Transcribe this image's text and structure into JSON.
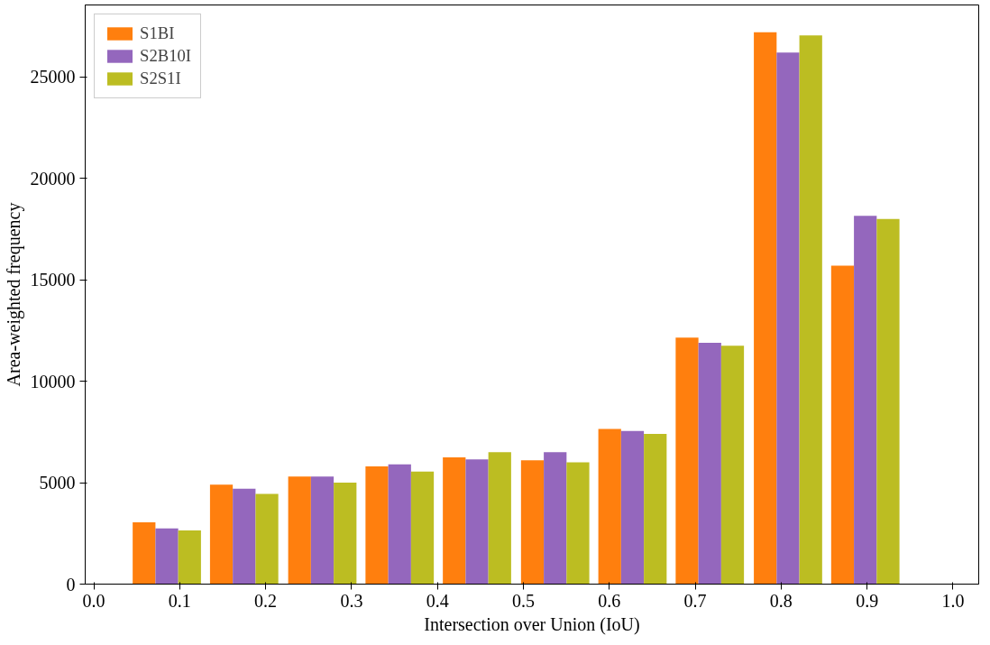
{
  "chart_data": {
    "type": "bar",
    "xlabel": "Intersection over Union (IoU)",
    "ylabel": "Area-weighted frequency",
    "x": [
      0.085,
      0.175,
      0.266,
      0.356,
      0.446,
      0.537,
      0.627,
      0.717,
      0.808,
      0.898
    ],
    "series": [
      {
        "name": "S1BI",
        "color": "#ff7f0e",
        "values": [
          3050,
          4900,
          5300,
          5800,
          6250,
          6100,
          7650,
          12150,
          27200,
          15700
        ]
      },
      {
        "name": "S2B10I",
        "color": "#9467bd",
        "values": [
          2750,
          4700,
          5300,
          5900,
          6150,
          6500,
          7550,
          11900,
          26200,
          18150
        ]
      },
      {
        "name": "S2S1I",
        "color": "#bcbd22",
        "values": [
          2650,
          4450,
          5000,
          5550,
          6500,
          6000,
          7400,
          11750,
          27050,
          18000
        ]
      }
    ],
    "xlim": [
      -0.01,
      1.03
    ],
    "xticks": [
      {
        "value": 0,
        "label": "0.0"
      },
      {
        "value": 0.1,
        "label": "0.1"
      },
      {
        "value": 0.2,
        "label": "0.2"
      },
      {
        "value": 0.3,
        "label": "0.3"
      },
      {
        "value": 0.4,
        "label": "0.4"
      },
      {
        "value": 0.5,
        "label": "0.5"
      },
      {
        "value": 0.6,
        "label": "0.6"
      },
      {
        "value": 0.7,
        "label": "0.7"
      },
      {
        "value": 0.8,
        "label": "0.8"
      },
      {
        "value": 0.9,
        "label": "0.9"
      },
      {
        "value": 1,
        "label": "1.0"
      }
    ],
    "ylim": [
      0,
      28550
    ],
    "yticks": [
      0,
      5000,
      10000,
      15000,
      20000,
      25000
    ],
    "grid": false,
    "legend": "top left"
  }
}
